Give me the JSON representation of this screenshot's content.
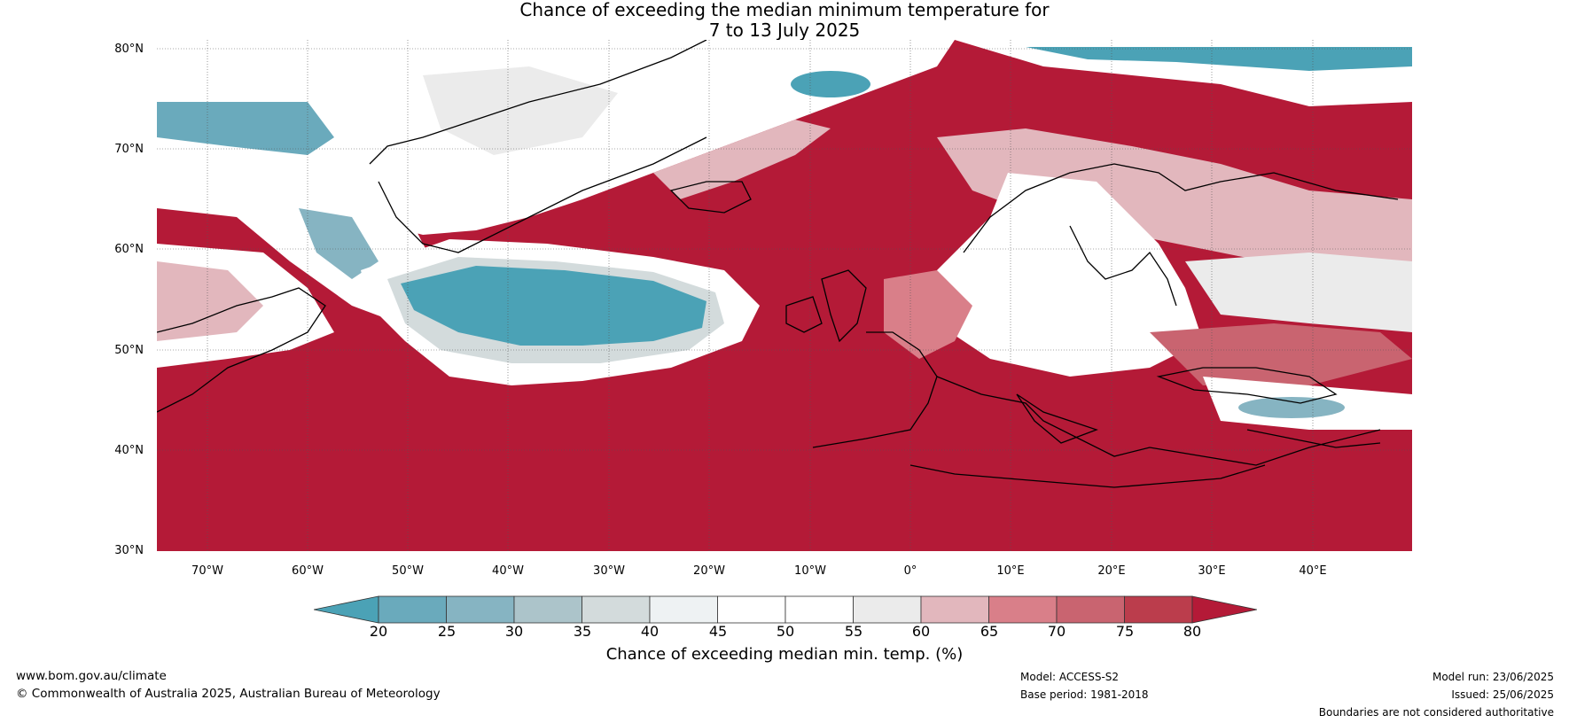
{
  "title": {
    "line1": "Chance of exceeding the median minimum temperature for",
    "line2": "7 to 13 July 2025"
  },
  "map": {
    "lat_labels": [
      "80°N",
      "70°N",
      "60°N",
      "50°N",
      "40°N",
      "30°N"
    ],
    "lon_labels": [
      "70°W",
      "60°W",
      "50°W",
      "40°W",
      "30°W",
      "20°W",
      "10°W",
      "0°",
      "10°E",
      "20°E",
      "30°E",
      "40°E"
    ]
  },
  "colorbar": {
    "ticks": [
      "20",
      "25",
      "30",
      "35",
      "40",
      "45",
      "50",
      "55",
      "60",
      "65",
      "70",
      "75",
      "80"
    ],
    "colors": [
      "#4ba2b6",
      "#6aaabc",
      "#86b4c2",
      "#acc4ca",
      "#d3dbdc",
      "#eef2f3",
      "#ffffff",
      "#ffffff",
      "#ebebeb",
      "#e2b7bd",
      "#d97f89",
      "#c96470",
      "#bb3d4c",
      "#b41a37"
    ],
    "label": "Chance of exceeding median min. temp. (%)"
  },
  "footer": {
    "website": "www.bom.gov.au/climate",
    "copyright": "© Commonwealth of Australia 2025, Australian Bureau of Meteorology",
    "model": "Model: ACCESS-S2",
    "base_period": "Base period: 1981-2018",
    "model_run": "Model run: 23/06/2025",
    "issued": "Issued: 25/06/2025",
    "disclaimer": "Boundaries are not considered authoritative"
  }
}
